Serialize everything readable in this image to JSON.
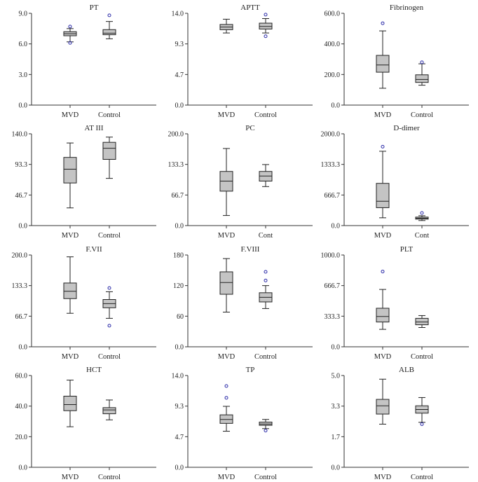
{
  "chart_data": [
    {
      "type": "box",
      "title": "PT",
      "ylim": [
        0,
        9
      ],
      "yticks": [
        "0.0",
        "3.0",
        "6.0",
        "9.0"
      ],
      "categories": [
        "MVD",
        "Control"
      ],
      "boxes": [
        {
          "min": 6.2,
          "q1": 6.8,
          "median": 7.0,
          "q3": 7.2,
          "max": 7.5,
          "outliers": [
            7.7,
            6.1
          ]
        },
        {
          "min": 6.5,
          "q1": 6.9,
          "median": 7.05,
          "q3": 7.4,
          "max": 8.2,
          "outliers": [
            8.8
          ]
        }
      ]
    },
    {
      "type": "box",
      "title": "APTT",
      "ylim": [
        0,
        14
      ],
      "yticks": [
        "0.0",
        "4.7",
        "9.3",
        "14.0"
      ],
      "categories": [
        "MVD",
        "Control"
      ],
      "boxes": [
        {
          "min": 11.0,
          "q1": 11.5,
          "median": 11.9,
          "q3": 12.3,
          "max": 13.1,
          "outliers": []
        },
        {
          "min": 11.0,
          "q1": 11.6,
          "median": 12.0,
          "q3": 12.5,
          "max": 13.2,
          "outliers": [
            13.8,
            10.5
          ]
        }
      ]
    },
    {
      "type": "box",
      "title": "Fibrinogen",
      "ylim": [
        0,
        600
      ],
      "yticks": [
        "0.0",
        "200.0",
        "400.0",
        "600.0"
      ],
      "categories": [
        "MVD",
        "Control"
      ],
      "boxes": [
        {
          "min": 110,
          "q1": 215,
          "median": 262,
          "q3": 325,
          "max": 485,
          "outliers": [
            535
          ]
        },
        {
          "min": 130,
          "q1": 148,
          "median": 168,
          "q3": 198,
          "max": 270,
          "outliers": [
            280
          ]
        }
      ]
    },
    {
      "type": "box",
      "title": "AT III",
      "ylim": [
        0,
        140
      ],
      "yticks": [
        "0.0",
        "46.7",
        "93.3",
        "140.0"
      ],
      "categories": [
        "MVD",
        "Control"
      ],
      "boxes": [
        {
          "min": 27,
          "q1": 65,
          "median": 86,
          "q3": 104,
          "max": 126,
          "outliers": []
        },
        {
          "min": 72,
          "q1": 101,
          "median": 118,
          "q3": 127,
          "max": 135,
          "outliers": []
        }
      ]
    },
    {
      "type": "box",
      "title": "PC",
      "ylim": [
        0,
        200
      ],
      "yticks": [
        "0.0",
        "66.7",
        "133.3",
        "200.0"
      ],
      "categories": [
        "MVD",
        "Cont"
      ],
      "boxes": [
        {
          "min": 22,
          "q1": 75,
          "median": 97,
          "q3": 118,
          "max": 168,
          "outliers": []
        },
        {
          "min": 85,
          "q1": 97,
          "median": 108,
          "q3": 118,
          "max": 133,
          "outliers": []
        }
      ]
    },
    {
      "type": "box",
      "title": "D-dimer",
      "ylim": [
        0,
        2000
      ],
      "yticks": [
        "0.0",
        "666.7",
        "1333.3",
        "2000.0"
      ],
      "categories": [
        "MVD",
        "Cont"
      ],
      "boxes": [
        {
          "min": 170,
          "q1": 390,
          "median": 530,
          "q3": 920,
          "max": 1620,
          "outliers": [
            1720
          ]
        },
        {
          "min": 110,
          "q1": 140,
          "median": 160,
          "q3": 185,
          "max": 215,
          "outliers": [
            275
          ]
        }
      ]
    },
    {
      "type": "box",
      "title": "F.VII",
      "ylim": [
        0,
        200
      ],
      "yticks": [
        "0.0",
        "66.7",
        "133.3",
        "200.0"
      ],
      "categories": [
        "MVD",
        "Control"
      ],
      "boxes": [
        {
          "min": 73,
          "q1": 105,
          "median": 121,
          "q3": 139,
          "max": 196,
          "outliers": []
        },
        {
          "min": 62,
          "q1": 85,
          "median": 94,
          "q3": 103,
          "max": 120,
          "outliers": [
            128,
            46
          ]
        }
      ]
    },
    {
      "type": "box",
      "title": "F.VIII",
      "ylim": [
        0,
        180
      ],
      "yticks": [
        "0.0",
        "60",
        "120",
        "180"
      ],
      "categories": [
        "MVD",
        "Control"
      ],
      "boxes": [
        {
          "min": 68,
          "q1": 103,
          "median": 126,
          "q3": 147,
          "max": 173,
          "outliers": []
        },
        {
          "min": 75,
          "q1": 88,
          "median": 97,
          "q3": 106,
          "max": 120,
          "outliers": [
            130,
            147
          ]
        }
      ]
    },
    {
      "type": "box",
      "title": "PLT",
      "ylim": [
        0,
        1000
      ],
      "yticks": [
        "0.0",
        "333.3",
        "666.7",
        "1000.0"
      ],
      "categories": [
        "MVD",
        "Control"
      ],
      "boxes": [
        {
          "min": 190,
          "q1": 270,
          "median": 330,
          "q3": 420,
          "max": 625,
          "outliers": [
            820
          ]
        },
        {
          "min": 210,
          "q1": 240,
          "median": 270,
          "q3": 310,
          "max": 340,
          "outliers": []
        }
      ]
    },
    {
      "type": "box",
      "title": "HCT",
      "ylim": [
        0,
        60
      ],
      "yticks": [
        "0.0",
        "20.0",
        "40.0",
        "60.0"
      ],
      "categories": [
        "MVD",
        "Control"
      ],
      "boxes": [
        {
          "min": 26.5,
          "q1": 37,
          "median": 41,
          "q3": 46.5,
          "max": 57,
          "outliers": []
        },
        {
          "min": 31,
          "q1": 35,
          "median": 37.5,
          "q3": 39,
          "max": 44,
          "outliers": []
        }
      ]
    },
    {
      "type": "box",
      "title": "TP",
      "ylim": [
        0,
        14
      ],
      "yticks": [
        "0.0",
        "4.7",
        "9.3",
        "14.0"
      ],
      "categories": [
        "MVD",
        "Control"
      ],
      "boxes": [
        {
          "min": 5.5,
          "q1": 6.7,
          "median": 7.3,
          "q3": 8.0,
          "max": 9.3,
          "outliers": [
            10.6,
            12.4
          ]
        },
        {
          "min": 5.9,
          "q1": 6.4,
          "median": 6.6,
          "q3": 6.9,
          "max": 7.3,
          "outliers": [
            5.6
          ]
        }
      ]
    },
    {
      "type": "box",
      "title": "ALB",
      "ylim": [
        0,
        5
      ],
      "yticks": [
        "0.0",
        "1.7",
        "3.3",
        "5.0"
      ],
      "categories": [
        "MVD",
        "Control"
      ],
      "boxes": [
        {
          "min": 2.35,
          "q1": 2.9,
          "median": 3.35,
          "q3": 3.7,
          "max": 4.8,
          "outliers": []
        },
        {
          "min": 2.45,
          "q1": 2.95,
          "median": 3.15,
          "q3": 3.35,
          "max": 3.8,
          "outliers": [
            2.35
          ]
        }
      ]
    }
  ]
}
